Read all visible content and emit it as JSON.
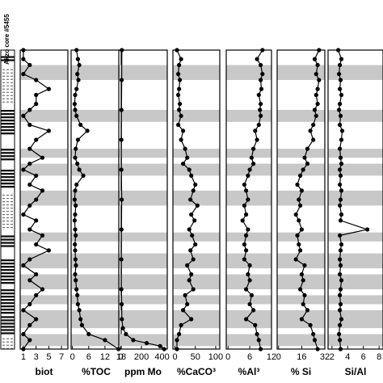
{
  "figure": {
    "core_label": "Akzo core #5455",
    "band_color": "#c8c8c8"
  },
  "chart_data": [
    {
      "type": "line",
      "xlabel": "biot",
      "ticks": [
        1,
        3,
        5,
        7
      ],
      "xlim": [
        0.5,
        8.0
      ],
      "y": [
        0.0,
        0.03,
        0.05,
        0.08,
        0.1,
        0.13,
        0.15,
        0.18,
        0.2,
        0.22,
        0.25,
        0.27,
        0.3,
        0.33,
        0.36,
        0.38,
        0.4,
        0.42,
        0.45,
        0.47,
        0.5,
        0.52,
        0.55,
        0.57,
        0.6,
        0.62,
        0.65,
        0.67,
        0.7,
        0.72,
        0.75,
        0.77,
        0.8,
        0.82,
        0.85,
        0.87,
        0.9,
        0.92,
        0.95,
        0.97,
        1.0
      ],
      "values": [
        1,
        1,
        2,
        1,
        3,
        5,
        3,
        3,
        2,
        1,
        2,
        5,
        3,
        2,
        4,
        2,
        1,
        3,
        2,
        4,
        3,
        2,
        1,
        3,
        2,
        4,
        3,
        5,
        2,
        1,
        3,
        2,
        4,
        3,
        2,
        1,
        3,
        2,
        1,
        2,
        1
      ]
    },
    {
      "type": "line",
      "xlabel": "%TOC",
      "ticks": [
        0,
        6,
        12,
        18
      ],
      "xlim": [
        -0.5,
        18.0
      ],
      "y": [
        0.0,
        0.03,
        0.05,
        0.08,
        0.1,
        0.13,
        0.15,
        0.18,
        0.2,
        0.22,
        0.25,
        0.27,
        0.3,
        0.33,
        0.36,
        0.38,
        0.4,
        0.42,
        0.45,
        0.47,
        0.5,
        0.52,
        0.55,
        0.57,
        0.6,
        0.62,
        0.65,
        0.67,
        0.7,
        0.72,
        0.75,
        0.77,
        0.8,
        0.82,
        0.85,
        0.87,
        0.9,
        0.92,
        0.95,
        0.97,
        1.0
      ],
      "values": [
        1.5,
        2.0,
        2.5,
        1.8,
        2.2,
        1.5,
        1.0,
        0.8,
        1.0,
        1.5,
        3.0,
        5.5,
        2.0,
        1.2,
        1.0,
        1.8,
        2.5,
        4.0,
        1.5,
        1.0,
        0.8,
        1.2,
        1.0,
        0.8,
        1.0,
        1.2,
        0.9,
        1.0,
        1.1,
        1.3,
        1.0,
        1.2,
        1.5,
        1.8,
        2.0,
        2.5,
        3.0,
        3.5,
        6.0,
        12.0,
        17.0
      ]
    },
    {
      "type": "line",
      "xlabel": "ppm Mo",
      "ticks": [
        0,
        200,
        400
      ],
      "xlim": [
        -20,
        450
      ],
      "y": [
        0.0,
        0.1,
        0.2,
        0.3,
        0.4,
        0.5,
        0.6,
        0.7,
        0.8,
        0.85,
        0.9,
        0.93,
        0.95,
        0.97,
        0.98,
        0.99,
        1.0
      ],
      "values": [
        10,
        8,
        6,
        5,
        5,
        8,
        6,
        5,
        5,
        8,
        10,
        20,
        50,
        120,
        250,
        380,
        420
      ]
    },
    {
      "type": "line",
      "xlabel": "%CaCO³",
      "ticks": [
        0,
        50,
        100
      ],
      "xlim": [
        -5,
        110
      ],
      "y": [
        0.0,
        0.03,
        0.05,
        0.08,
        0.1,
        0.13,
        0.15,
        0.18,
        0.2,
        0.22,
        0.25,
        0.27,
        0.3,
        0.33,
        0.36,
        0.38,
        0.4,
        0.42,
        0.45,
        0.47,
        0.5,
        0.52,
        0.55,
        0.57,
        0.6,
        0.62,
        0.65,
        0.67,
        0.7,
        0.72,
        0.75,
        0.77,
        0.8,
        0.82,
        0.85,
        0.87,
        0.9,
        0.92,
        0.95,
        0.97,
        1.0
      ],
      "values": [
        5,
        15,
        10,
        8,
        12,
        10,
        8,
        12,
        10,
        15,
        8,
        20,
        15,
        25,
        30,
        20,
        35,
        40,
        50,
        45,
        38,
        55,
        40,
        48,
        35,
        42,
        50,
        38,
        45,
        30,
        40,
        35,
        45,
        25,
        30,
        20,
        40,
        15,
        10,
        5,
        5
      ]
    },
    {
      "type": "line",
      "xlabel": "%Al³",
      "ticks": [
        0,
        6,
        12
      ],
      "xlim": [
        -0.5,
        12.0
      ],
      "y": [
        0.0,
        0.03,
        0.05,
        0.08,
        0.1,
        0.13,
        0.15,
        0.18,
        0.2,
        0.22,
        0.25,
        0.27,
        0.3,
        0.33,
        0.36,
        0.38,
        0.4,
        0.42,
        0.45,
        0.47,
        0.5,
        0.52,
        0.55,
        0.57,
        0.6,
        0.62,
        0.65,
        0.67,
        0.7,
        0.72,
        0.75,
        0.77,
        0.8,
        0.82,
        0.85,
        0.87,
        0.9,
        0.92,
        0.95,
        0.97,
        1.0
      ],
      "values": [
        9.5,
        8.0,
        9.0,
        9.5,
        9.0,
        9.2,
        8.5,
        9.0,
        8.8,
        9.0,
        8.5,
        7.5,
        8.0,
        7.0,
        6.5,
        7.0,
        6.0,
        5.5,
        4.5,
        5.0,
        5.5,
        4.5,
        5.0,
        4.0,
        5.5,
        5.0,
        4.5,
        5.0,
        4.5,
        6.0,
        5.5,
        6.0,
        5.0,
        6.5,
        6.0,
        7.0,
        5.0,
        7.5,
        8.0,
        8.5,
        9.0
      ]
    },
    {
      "type": "line",
      "xlabel": "% Si",
      "ticks": [
        0,
        16,
        32
      ],
      "xlim": [
        -1,
        32.0
      ],
      "y": [
        0.0,
        0.03,
        0.05,
        0.08,
        0.1,
        0.13,
        0.15,
        0.18,
        0.2,
        0.22,
        0.25,
        0.27,
        0.3,
        0.33,
        0.36,
        0.38,
        0.4,
        0.42,
        0.45,
        0.47,
        0.5,
        0.52,
        0.55,
        0.57,
        0.6,
        0.62,
        0.65,
        0.67,
        0.7,
        0.72,
        0.75,
        0.77,
        0.8,
        0.82,
        0.85,
        0.87,
        0.9,
        0.92,
        0.95,
        0.97,
        1.0
      ],
      "values": [
        28,
        25,
        27,
        26,
        28,
        27,
        26,
        27,
        25,
        26,
        24,
        22,
        24,
        20,
        18,
        20,
        17,
        15,
        13,
        16,
        14,
        15,
        12,
        14,
        16,
        13,
        14,
        15,
        12,
        18,
        16,
        17,
        15,
        18,
        17,
        20,
        16,
        22,
        24,
        25,
        27
      ]
    },
    {
      "type": "line",
      "xlabel": "Si/Al",
      "ticks": [
        2,
        4,
        6,
        8
      ],
      "xlim": [
        1.5,
        8.5
      ],
      "y": [
        0.0,
        0.03,
        0.05,
        0.08,
        0.1,
        0.13,
        0.15,
        0.18,
        0.2,
        0.22,
        0.25,
        0.27,
        0.3,
        0.33,
        0.36,
        0.38,
        0.4,
        0.42,
        0.45,
        0.47,
        0.5,
        0.52,
        0.55,
        0.57,
        0.6,
        0.62,
        0.65,
        0.67,
        0.7,
        0.72,
        0.75,
        0.77,
        0.8,
        0.82,
        0.85,
        0.87,
        0.9,
        0.92,
        0.95,
        0.97,
        1.0
      ],
      "values": [
        2.8,
        3.2,
        3.0,
        2.9,
        3.1,
        3.0,
        3.2,
        3.0,
        2.9,
        3.1,
        3.0,
        3.3,
        3.2,
        3.0,
        3.1,
        3.2,
        3.0,
        3.1,
        3.0,
        3.2,
        3.1,
        3.0,
        3.2,
        3.1,
        6.5,
        3.0,
        3.2,
        3.1,
        3.0,
        3.1,
        3.0,
        3.2,
        3.1,
        3.0,
        3.1,
        3.0,
        3.2,
        3.0,
        2.9,
        3.0,
        3.1
      ]
    }
  ]
}
